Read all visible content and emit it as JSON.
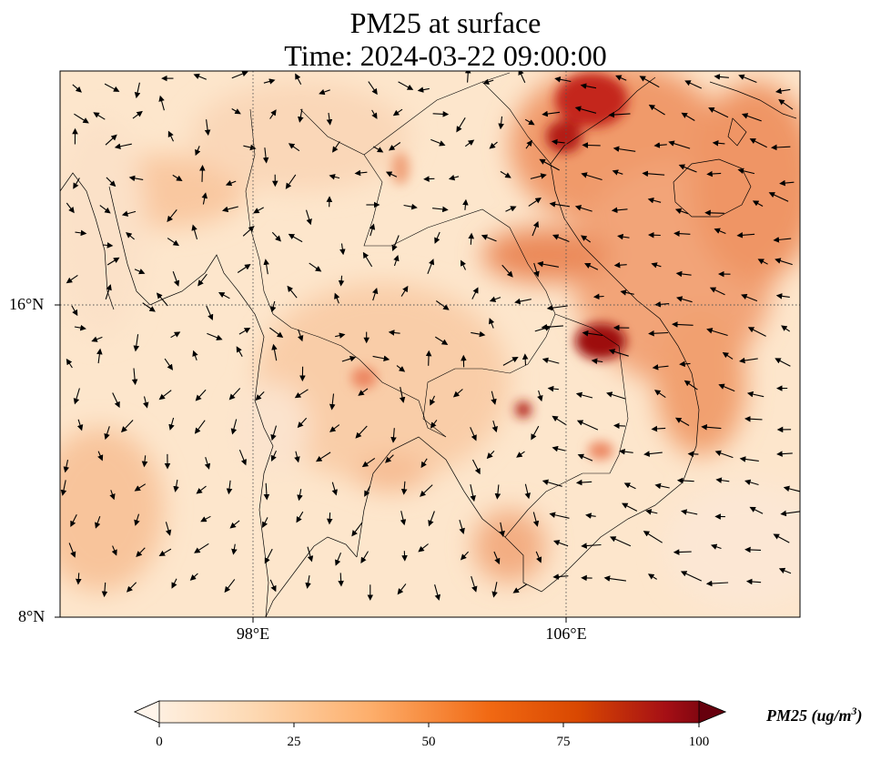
{
  "title": "PM25 at surface",
  "subtitle": "Time: 2024-03-22 09:00:00",
  "map": {
    "lat_ticks": [
      "16°N",
      "8°N"
    ],
    "lon_ticks": [
      "98°E",
      "106°E"
    ],
    "gridlines": "dotted"
  },
  "colorbar": {
    "label": "PM25 (ug/m",
    "label_sup": "3",
    "label_close": ")",
    "ticks": [
      "0",
      "25",
      "50",
      "75",
      "100"
    ],
    "min": 0,
    "max": 100,
    "extend": "both",
    "colors": [
      "#fff5eb",
      "#fdd2a5",
      "#fd9243",
      "#e84e22",
      "#a40000",
      "#67000d"
    ]
  },
  "colors": {
    "low": "#fde9d3",
    "medium": "#f6b385",
    "high": "#e0542f",
    "hotspot": "#9d0709",
    "coastline": "#000000"
  }
}
